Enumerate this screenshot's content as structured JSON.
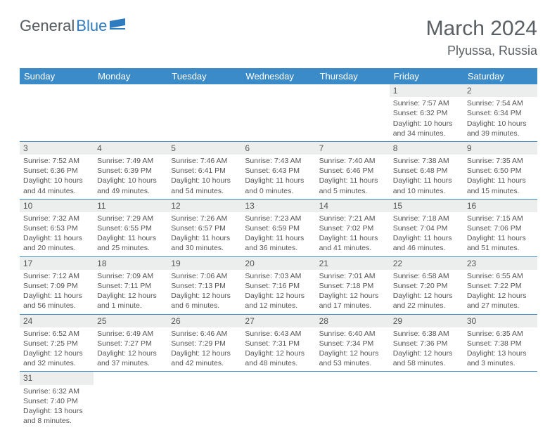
{
  "brand": {
    "part1": "General",
    "part2": "Blue"
  },
  "title": "March 2024",
  "location": "Plyussa, Russia",
  "colors": {
    "header_bg": "#3b8bc9",
    "header_text": "#ffffff",
    "daynum_bg": "#eceded",
    "row_border": "#3b8bc9",
    "body_text": "#555555",
    "title_text": "#5a5f63",
    "logo_general": "#555a5e",
    "logo_blue": "#2f7bbf",
    "page_bg": "#ffffff"
  },
  "weekdays": [
    "Sunday",
    "Monday",
    "Tuesday",
    "Wednesday",
    "Thursday",
    "Friday",
    "Saturday"
  ],
  "weeks": [
    [
      null,
      null,
      null,
      null,
      null,
      {
        "n": "1",
        "sr": "Sunrise: 7:57 AM",
        "ss": "Sunset: 6:32 PM",
        "dl": "Daylight: 10 hours and 34 minutes."
      },
      {
        "n": "2",
        "sr": "Sunrise: 7:54 AM",
        "ss": "Sunset: 6:34 PM",
        "dl": "Daylight: 10 hours and 39 minutes."
      }
    ],
    [
      {
        "n": "3",
        "sr": "Sunrise: 7:52 AM",
        "ss": "Sunset: 6:36 PM",
        "dl": "Daylight: 10 hours and 44 minutes."
      },
      {
        "n": "4",
        "sr": "Sunrise: 7:49 AM",
        "ss": "Sunset: 6:39 PM",
        "dl": "Daylight: 10 hours and 49 minutes."
      },
      {
        "n": "5",
        "sr": "Sunrise: 7:46 AM",
        "ss": "Sunset: 6:41 PM",
        "dl": "Daylight: 10 hours and 54 minutes."
      },
      {
        "n": "6",
        "sr": "Sunrise: 7:43 AM",
        "ss": "Sunset: 6:43 PM",
        "dl": "Daylight: 11 hours and 0 minutes."
      },
      {
        "n": "7",
        "sr": "Sunrise: 7:40 AM",
        "ss": "Sunset: 6:46 PM",
        "dl": "Daylight: 11 hours and 5 minutes."
      },
      {
        "n": "8",
        "sr": "Sunrise: 7:38 AM",
        "ss": "Sunset: 6:48 PM",
        "dl": "Daylight: 11 hours and 10 minutes."
      },
      {
        "n": "9",
        "sr": "Sunrise: 7:35 AM",
        "ss": "Sunset: 6:50 PM",
        "dl": "Daylight: 11 hours and 15 minutes."
      }
    ],
    [
      {
        "n": "10",
        "sr": "Sunrise: 7:32 AM",
        "ss": "Sunset: 6:53 PM",
        "dl": "Daylight: 11 hours and 20 minutes."
      },
      {
        "n": "11",
        "sr": "Sunrise: 7:29 AM",
        "ss": "Sunset: 6:55 PM",
        "dl": "Daylight: 11 hours and 25 minutes."
      },
      {
        "n": "12",
        "sr": "Sunrise: 7:26 AM",
        "ss": "Sunset: 6:57 PM",
        "dl": "Daylight: 11 hours and 30 minutes."
      },
      {
        "n": "13",
        "sr": "Sunrise: 7:23 AM",
        "ss": "Sunset: 6:59 PM",
        "dl": "Daylight: 11 hours and 36 minutes."
      },
      {
        "n": "14",
        "sr": "Sunrise: 7:21 AM",
        "ss": "Sunset: 7:02 PM",
        "dl": "Daylight: 11 hours and 41 minutes."
      },
      {
        "n": "15",
        "sr": "Sunrise: 7:18 AM",
        "ss": "Sunset: 7:04 PM",
        "dl": "Daylight: 11 hours and 46 minutes."
      },
      {
        "n": "16",
        "sr": "Sunrise: 7:15 AM",
        "ss": "Sunset: 7:06 PM",
        "dl": "Daylight: 11 hours and 51 minutes."
      }
    ],
    [
      {
        "n": "17",
        "sr": "Sunrise: 7:12 AM",
        "ss": "Sunset: 7:09 PM",
        "dl": "Daylight: 11 hours and 56 minutes."
      },
      {
        "n": "18",
        "sr": "Sunrise: 7:09 AM",
        "ss": "Sunset: 7:11 PM",
        "dl": "Daylight: 12 hours and 1 minute."
      },
      {
        "n": "19",
        "sr": "Sunrise: 7:06 AM",
        "ss": "Sunset: 7:13 PM",
        "dl": "Daylight: 12 hours and 6 minutes."
      },
      {
        "n": "20",
        "sr": "Sunrise: 7:03 AM",
        "ss": "Sunset: 7:16 PM",
        "dl": "Daylight: 12 hours and 12 minutes."
      },
      {
        "n": "21",
        "sr": "Sunrise: 7:01 AM",
        "ss": "Sunset: 7:18 PM",
        "dl": "Daylight: 12 hours and 17 minutes."
      },
      {
        "n": "22",
        "sr": "Sunrise: 6:58 AM",
        "ss": "Sunset: 7:20 PM",
        "dl": "Daylight: 12 hours and 22 minutes."
      },
      {
        "n": "23",
        "sr": "Sunrise: 6:55 AM",
        "ss": "Sunset: 7:22 PM",
        "dl": "Daylight: 12 hours and 27 minutes."
      }
    ],
    [
      {
        "n": "24",
        "sr": "Sunrise: 6:52 AM",
        "ss": "Sunset: 7:25 PM",
        "dl": "Daylight: 12 hours and 32 minutes."
      },
      {
        "n": "25",
        "sr": "Sunrise: 6:49 AM",
        "ss": "Sunset: 7:27 PM",
        "dl": "Daylight: 12 hours and 37 minutes."
      },
      {
        "n": "26",
        "sr": "Sunrise: 6:46 AM",
        "ss": "Sunset: 7:29 PM",
        "dl": "Daylight: 12 hours and 42 minutes."
      },
      {
        "n": "27",
        "sr": "Sunrise: 6:43 AM",
        "ss": "Sunset: 7:31 PM",
        "dl": "Daylight: 12 hours and 48 minutes."
      },
      {
        "n": "28",
        "sr": "Sunrise: 6:40 AM",
        "ss": "Sunset: 7:34 PM",
        "dl": "Daylight: 12 hours and 53 minutes."
      },
      {
        "n": "29",
        "sr": "Sunrise: 6:38 AM",
        "ss": "Sunset: 7:36 PM",
        "dl": "Daylight: 12 hours and 58 minutes."
      },
      {
        "n": "30",
        "sr": "Sunrise: 6:35 AM",
        "ss": "Sunset: 7:38 PM",
        "dl": "Daylight: 13 hours and 3 minutes."
      }
    ],
    [
      {
        "n": "31",
        "sr": "Sunrise: 6:32 AM",
        "ss": "Sunset: 7:40 PM",
        "dl": "Daylight: 13 hours and 8 minutes."
      },
      null,
      null,
      null,
      null,
      null,
      null
    ]
  ]
}
